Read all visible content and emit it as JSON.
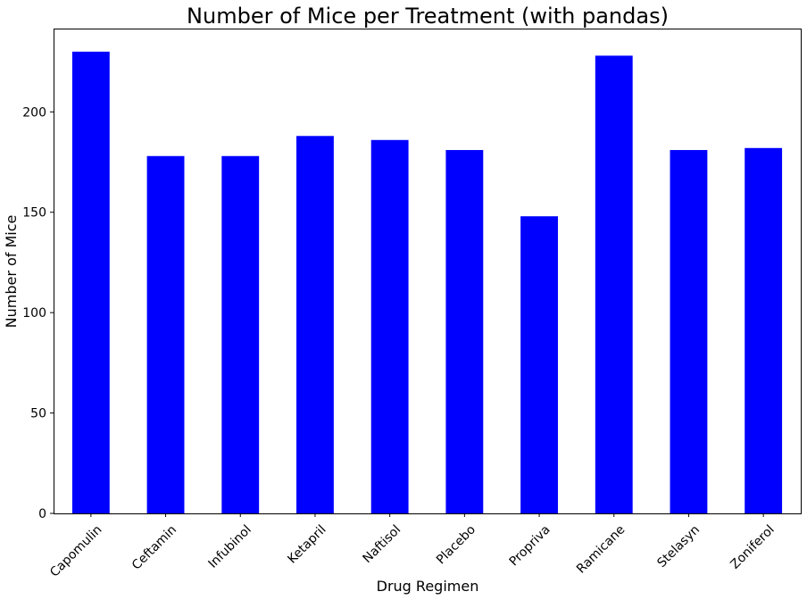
{
  "chart_data": {
    "type": "bar",
    "title": "Number of Mice per Treatment (with pandas)",
    "xlabel": "Drug Regimen",
    "ylabel": "Number of Mice",
    "categories": [
      "Capomulin",
      "Ceftamin",
      "Infubinol",
      "Ketapril",
      "Naftisol",
      "Placebo",
      "Propriva",
      "Ramicane",
      "Stelasyn",
      "Zoniferol"
    ],
    "values": [
      230,
      178,
      178,
      188,
      186,
      181,
      148,
      228,
      181,
      182
    ],
    "ylim": [
      0,
      241.5
    ],
    "yticks": [
      0,
      50,
      100,
      150,
      200
    ],
    "bar_color": "#0000ff",
    "grid": false,
    "legend": false
  }
}
